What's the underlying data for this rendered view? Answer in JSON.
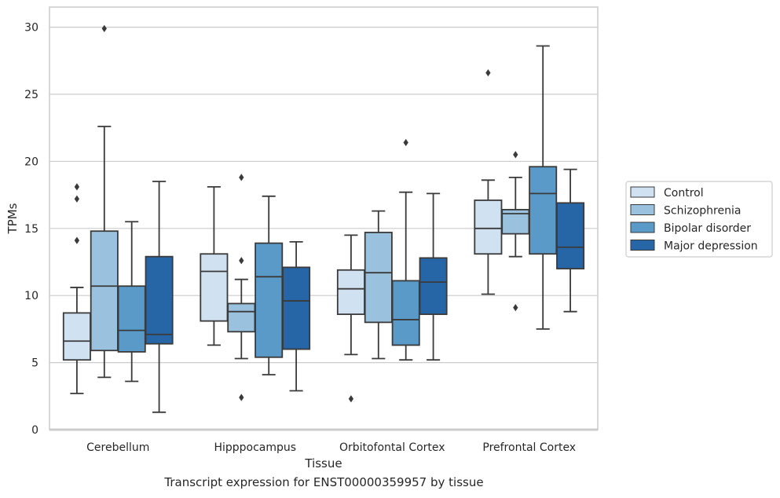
{
  "chart_data": {
    "type": "box",
    "xlabel": "Tissue",
    "ylabel": "TPMs",
    "ylim": [
      0,
      31.5
    ],
    "yticks": [
      0,
      5,
      10,
      15,
      20,
      25,
      30
    ],
    "grid": "horizontal",
    "legend_position": "right",
    "categories": [
      "Cerebellum",
      "Hipppocampus",
      "Orbitofontal Cortex",
      "Prefrontal Cortex"
    ],
    "series": [
      {
        "name": "Control",
        "color": "#d0e1f2",
        "boxes": [
          {
            "whisker_low": 2.7,
            "q1": 5.2,
            "median": 6.6,
            "q3": 8.7,
            "whisker_high": 10.6,
            "outliers": [
              14.1,
              17.2,
              18.1
            ]
          },
          {
            "whisker_low": 6.3,
            "q1": 8.1,
            "median": 11.8,
            "q3": 13.1,
            "whisker_high": 18.1,
            "outliers": []
          },
          {
            "whisker_low": 5.6,
            "q1": 8.6,
            "median": 10.5,
            "q3": 11.9,
            "whisker_high": 14.5,
            "outliers": [
              2.3
            ]
          },
          {
            "whisker_low": 10.1,
            "q1": 13.1,
            "median": 15.0,
            "q3": 17.1,
            "whisker_high": 18.6,
            "outliers": [
              26.6
            ]
          }
        ]
      },
      {
        "name": "Schizophrenia",
        "color": "#9ac2de",
        "boxes": [
          {
            "whisker_low": 3.9,
            "q1": 5.9,
            "median": 10.7,
            "q3": 14.8,
            "whisker_high": 22.6,
            "outliers": [
              29.9
            ]
          },
          {
            "whisker_low": 5.3,
            "q1": 7.3,
            "median": 8.8,
            "q3": 9.4,
            "whisker_high": 11.2,
            "outliers": [
              2.4,
              12.6,
              18.8
            ]
          },
          {
            "whisker_low": 5.3,
            "q1": 8.0,
            "median": 11.7,
            "q3": 14.7,
            "whisker_high": 16.3,
            "outliers": []
          },
          {
            "whisker_low": 12.9,
            "q1": 14.6,
            "median": 16.1,
            "q3": 16.4,
            "whisker_high": 18.8,
            "outliers": [
              9.1,
              20.5
            ]
          }
        ]
      },
      {
        "name": "Bipolar disorder",
        "color": "#5a9ac8",
        "boxes": [
          {
            "whisker_low": 3.6,
            "q1": 5.8,
            "median": 7.4,
            "q3": 10.7,
            "whisker_high": 15.5,
            "outliers": []
          },
          {
            "whisker_low": 4.1,
            "q1": 5.4,
            "median": 11.4,
            "q3": 13.9,
            "whisker_high": 17.4,
            "outliers": []
          },
          {
            "whisker_low": 5.2,
            "q1": 6.3,
            "median": 8.2,
            "q3": 11.1,
            "whisker_high": 17.7,
            "outliers": [
              21.4
            ]
          },
          {
            "whisker_low": 7.5,
            "q1": 13.1,
            "median": 17.6,
            "q3": 19.6,
            "whisker_high": 28.6,
            "outliers": []
          }
        ]
      },
      {
        "name": "Major depression",
        "color": "#2766a6",
        "boxes": [
          {
            "whisker_low": 1.3,
            "q1": 6.4,
            "median": 7.1,
            "q3": 12.9,
            "whisker_high": 18.5,
            "outliers": []
          },
          {
            "whisker_low": 2.9,
            "q1": 6.0,
            "median": 9.6,
            "q3": 12.1,
            "whisker_high": 14.0,
            "outliers": []
          },
          {
            "whisker_low": 5.2,
            "q1": 8.6,
            "median": 11.0,
            "q3": 12.8,
            "whisker_high": 17.6,
            "outliers": []
          },
          {
            "whisker_low": 8.8,
            "q1": 12.0,
            "median": 13.6,
            "q3": 16.9,
            "whisker_high": 19.4,
            "outliers": []
          }
        ]
      }
    ]
  },
  "caption": "Transcript expression for ENST00000359957 by tissue",
  "colors": {
    "grid": "#cccccc",
    "frame": "#cccccc",
    "lines": "#3a3a3a",
    "legend_border": "#cccccc"
  }
}
